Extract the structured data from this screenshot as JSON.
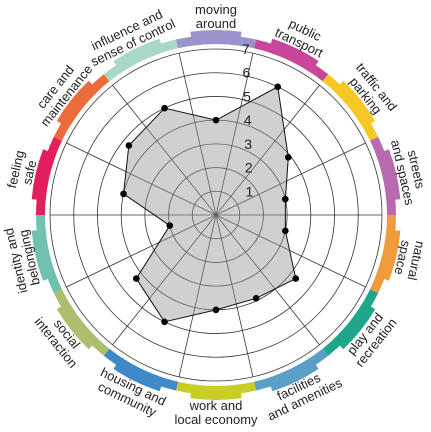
{
  "chart_data": {
    "type": "radar",
    "title": "",
    "scale": {
      "min": 0,
      "max": 7,
      "ticks": [
        1,
        2,
        3,
        4,
        5,
        6,
        7
      ]
    },
    "categories": [
      {
        "label_lines": [
          "moving",
          "around"
        ],
        "value": 4.0,
        "color": "#9b94cc"
      },
      {
        "label_lines": [
          "public",
          "transport"
        ],
        "value": 6.0,
        "color": "#c8479a"
      },
      {
        "label_lines": [
          "traffic and",
          "parking"
        ],
        "value": 3.9,
        "color": "#f7c824"
      },
      {
        "label_lines": [
          "streets",
          "and spaces"
        ],
        "value": 3.0,
        "color": "#b96aaf"
      },
      {
        "label_lines": [
          "natural",
          "space"
        ],
        "value": 3.0,
        "color": "#ef9b3c"
      },
      {
        "label_lines": [
          "play and",
          "recreation"
        ],
        "value": 4.3,
        "color": "#1da68a"
      },
      {
        "label_lines": [
          "facilities",
          "and amenities"
        ],
        "value": 3.9,
        "color": "#5a9fc8"
      },
      {
        "label_lines": [
          "work and",
          "local economy"
        ],
        "value": 4.0,
        "color": "#c8cd2a"
      },
      {
        "label_lines": [
          "housing and",
          "community"
        ],
        "value": 5.0,
        "color": "#3f89c9"
      },
      {
        "label_lines": [
          "social",
          "interaction"
        ],
        "value": 4.3,
        "color": "#abbf6e"
      },
      {
        "label_lines": [
          "identity and",
          "belonging"
        ],
        "value": 2.0,
        "color": "#70c1b0"
      },
      {
        "label_lines": [
          "feeling",
          "safe"
        ],
        "value": 4.0,
        "color": "#e31e5d"
      },
      {
        "label_lines": [
          "care and",
          "maintenance"
        ],
        "value": 4.7,
        "color": "#ec6b3a"
      },
      {
        "label_lines": [
          "influence and",
          "sense of control"
        ],
        "value": 5.0,
        "color": "#a9d8c6"
      }
    ]
  }
}
